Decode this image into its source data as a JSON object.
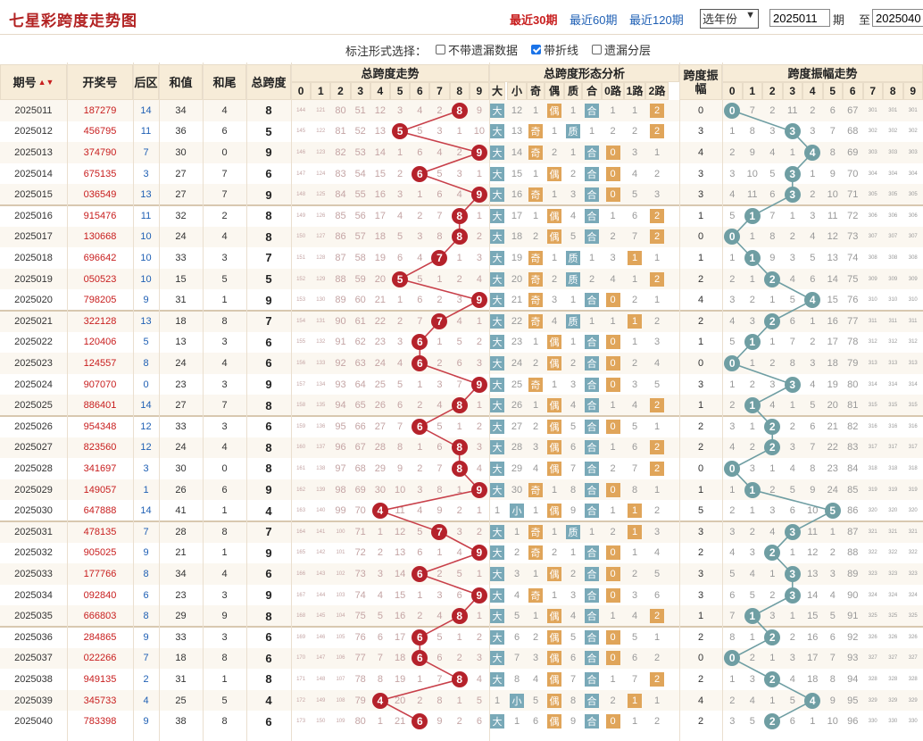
{
  "header": {
    "title": "七星彩跨度走势图",
    "periods": [
      {
        "label": "最近30期",
        "active": true
      },
      {
        "label": "最近60期",
        "active": false
      },
      {
        "label": "最近120期",
        "active": false
      }
    ],
    "year_select": "选年份",
    "from_issue": "2025011",
    "issue_label": "期",
    "to_label": "至",
    "to_issue": "2025040"
  },
  "options": {
    "title": "标注形式选择：",
    "items": [
      {
        "label": "不带遗漏数据",
        "checked": false
      },
      {
        "label": "带折线",
        "checked": true
      },
      {
        "label": "遗漏分层",
        "checked": false
      }
    ]
  },
  "table": {
    "col_headers": {
      "issue": "期号",
      "draw": "开奖号",
      "back": "后区",
      "sum": "和值",
      "tail": "和尾",
      "span": "总跨度",
      "span_amp": "跨度振幅"
    },
    "group_headers": {
      "span_trend": "总跨度走势",
      "shape": "总跨度形态分析",
      "amp_trend": "跨度振幅走势"
    },
    "digits": [
      "0",
      "1",
      "2",
      "3",
      "4",
      "5",
      "6",
      "7",
      "8",
      "9"
    ],
    "shape_headers": [
      "大",
      "小",
      "奇",
      "偶",
      "质",
      "合",
      "0路",
      "1路",
      "2路"
    ],
    "rows": [
      {
        "issue": "2025011",
        "draw": "187279",
        "back": "14",
        "sum": "34",
        "tail": "4",
        "span": 8,
        "amp": 0
      },
      {
        "issue": "2025012",
        "draw": "456795",
        "back": "11",
        "sum": "36",
        "tail": "6",
        "span": 5,
        "amp": 3
      },
      {
        "issue": "2025013",
        "draw": "374790",
        "back": "7",
        "sum": "30",
        "tail": "0",
        "span": 9,
        "amp": 4
      },
      {
        "issue": "2025014",
        "draw": "675135",
        "back": "3",
        "sum": "27",
        "tail": "7",
        "span": 6,
        "amp": 3
      },
      {
        "issue": "2025015",
        "draw": "036549",
        "back": "13",
        "sum": "27",
        "tail": "7",
        "span": 9,
        "amp": 3
      },
      {
        "issue": "2025016",
        "draw": "915476",
        "back": "11",
        "sum": "32",
        "tail": "2",
        "span": 8,
        "amp": 1
      },
      {
        "issue": "2025017",
        "draw": "130668",
        "back": "10",
        "sum": "24",
        "tail": "4",
        "span": 8,
        "amp": 0
      },
      {
        "issue": "2025018",
        "draw": "696642",
        "back": "10",
        "sum": "33",
        "tail": "3",
        "span": 7,
        "amp": 1
      },
      {
        "issue": "2025019",
        "draw": "050523",
        "back": "10",
        "sum": "15",
        "tail": "5",
        "span": 5,
        "amp": 2
      },
      {
        "issue": "2025020",
        "draw": "798205",
        "back": "9",
        "sum": "31",
        "tail": "1",
        "span": 9,
        "amp": 4
      },
      {
        "issue": "2025021",
        "draw": "322128",
        "back": "13",
        "sum": "18",
        "tail": "8",
        "span": 7,
        "amp": 2
      },
      {
        "issue": "2025022",
        "draw": "120406",
        "back": "5",
        "sum": "13",
        "tail": "3",
        "span": 6,
        "amp": 1
      },
      {
        "issue": "2025023",
        "draw": "124557",
        "back": "8",
        "sum": "24",
        "tail": "4",
        "span": 6,
        "amp": 0
      },
      {
        "issue": "2025024",
        "draw": "907070",
        "back": "0",
        "sum": "23",
        "tail": "3",
        "span": 9,
        "amp": 3
      },
      {
        "issue": "2025025",
        "draw": "886401",
        "back": "14",
        "sum": "27",
        "tail": "7",
        "span": 8,
        "amp": 1
      },
      {
        "issue": "2025026",
        "draw": "954348",
        "back": "12",
        "sum": "33",
        "tail": "3",
        "span": 6,
        "amp": 2
      },
      {
        "issue": "2025027",
        "draw": "823560",
        "back": "12",
        "sum": "24",
        "tail": "4",
        "span": 8,
        "amp": 2
      },
      {
        "issue": "2025028",
        "draw": "341697",
        "back": "3",
        "sum": "30",
        "tail": "0",
        "span": 8,
        "amp": 0
      },
      {
        "issue": "2025029",
        "draw": "149057",
        "back": "1",
        "sum": "26",
        "tail": "6",
        "span": 9,
        "amp": 1
      },
      {
        "issue": "2025030",
        "draw": "647888",
        "back": "14",
        "sum": "41",
        "tail": "1",
        "span": 4,
        "amp": 5
      },
      {
        "issue": "2025031",
        "draw": "478135",
        "back": "7",
        "sum": "28",
        "tail": "8",
        "span": 7,
        "amp": 3
      },
      {
        "issue": "2025032",
        "draw": "905025",
        "back": "9",
        "sum": "21",
        "tail": "1",
        "span": 9,
        "amp": 2
      },
      {
        "issue": "2025033",
        "draw": "177766",
        "back": "8",
        "sum": "34",
        "tail": "4",
        "span": 6,
        "amp": 3
      },
      {
        "issue": "2025034",
        "draw": "092840",
        "back": "6",
        "sum": "23",
        "tail": "3",
        "span": 9,
        "amp": 3
      },
      {
        "issue": "2025035",
        "draw": "666803",
        "back": "8",
        "sum": "29",
        "tail": "9",
        "span": 8,
        "amp": 1
      },
      {
        "issue": "2025036",
        "draw": "284865",
        "back": "9",
        "sum": "33",
        "tail": "3",
        "span": 6,
        "amp": 2
      },
      {
        "issue": "2025037",
        "draw": "022266",
        "back": "7",
        "sum": "18",
        "tail": "8",
        "span": 6,
        "amp": 0
      },
      {
        "issue": "2025038",
        "draw": "949135",
        "back": "2",
        "sum": "31",
        "tail": "1",
        "span": 8,
        "amp": 2
      },
      {
        "issue": "2025039",
        "draw": "345733",
        "back": "4",
        "sum": "25",
        "tail": "5",
        "span": 4,
        "amp": 4
      },
      {
        "issue": "2025040",
        "draw": "783398",
        "back": "9",
        "sum": "38",
        "tail": "8",
        "span": 6,
        "amp": 2
      }
    ]
  },
  "colors": {
    "accent_red": "#b5222b",
    "teal": "#6f9ea3",
    "link_blue": "#1e5fb4",
    "header_bg": "#f7ecd8"
  }
}
